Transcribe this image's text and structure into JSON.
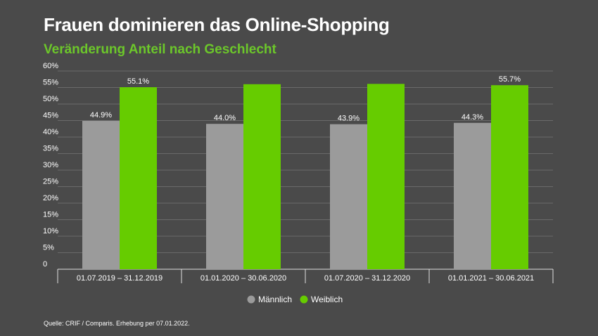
{
  "title": "Frauen dominieren das Online-Shopping",
  "subtitle": "Veränderung Anteil nach Geschlecht",
  "source": "Quelle: CRIF / Comparis. Erhebung per 07.01.2022.",
  "colors": {
    "maennlich": "#9b9b9b",
    "weiblich": "#66cc00",
    "background": "#4a4a4a"
  },
  "chart_data": {
    "type": "bar",
    "categories": [
      "01.07.2019 – 31.12.2019",
      "01.01.2020 – 30.06.2020",
      "01.07.2020 – 31.12.2020",
      "01.01.2021 – 30.06.2021"
    ],
    "series": [
      {
        "name": "Männlich",
        "values": [
          44.9,
          44.0,
          43.9,
          44.3
        ],
        "labels": [
          "44.9%",
          "44.0%",
          "43.9%",
          "44.3%"
        ]
      },
      {
        "name": "Weiblich",
        "values": [
          55.1,
          56.0,
          56.1,
          55.7
        ],
        "labels": [
          "55.1%",
          "",
          "",
          "55.7%"
        ]
      }
    ],
    "yticks": [
      "0",
      "5%",
      "10%",
      "15%",
      "20%",
      "25%",
      "30%",
      "35%",
      "40%",
      "45%",
      "50%",
      "55%",
      "60%"
    ],
    "ylim": [
      0,
      60
    ],
    "grid": true,
    "legend_position": "bottom-center"
  }
}
